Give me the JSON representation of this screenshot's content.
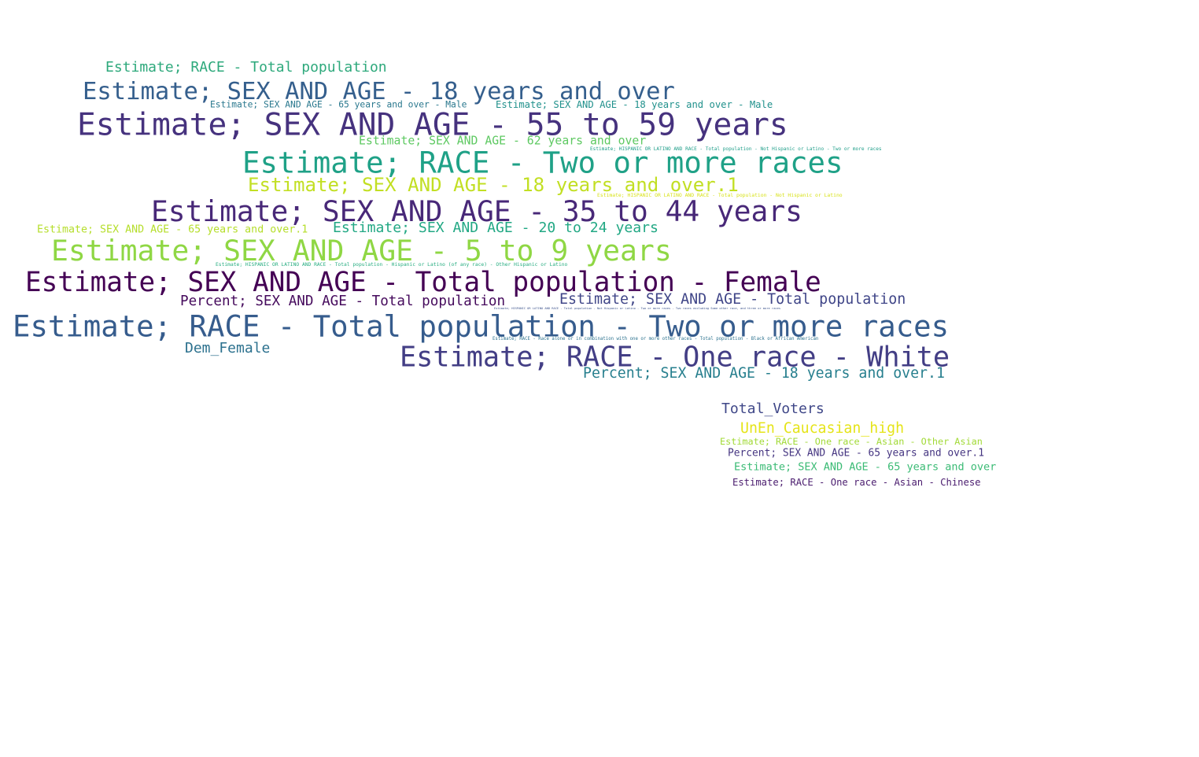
{
  "cloud": {
    "words": [
      {
        "text": "Estimate; RACE - Total population",
        "color": "#2ea97c"
      },
      {
        "text": "Estimate; SEX AND AGE - 18 years and over",
        "color": "#355f8d"
      },
      {
        "text": "Estimate; SEX AND AGE - 65 years and over - Male",
        "color": "#2a788e"
      },
      {
        "text": "Estimate; SEX AND AGE - 18 years and over - Male",
        "color": "#21918c"
      },
      {
        "text": "Estimate; SEX AND AGE - 55 to 59 years",
        "color": "#46327e"
      },
      {
        "text": "Estimate; SEX AND AGE - 62 years and over",
        "color": "#5ec962"
      },
      {
        "text": "Estimate; HISPANIC OR LATINO AND RACE - Total population - Not Hispanic or Latino - Two or more races",
        "color": "#1f9e89"
      },
      {
        "text": "Estimate; RACE - Two or more races",
        "color": "#1fa187"
      },
      {
        "text": "Estimate; SEX AND AGE - 18 years and over.1",
        "color": "#c2df23"
      },
      {
        "text": "Estimate; HISPANIC OR LATINO AND RACE - Total population - Not Hispanic or Latino",
        "color": "#d8e219"
      },
      {
        "text": "Estimate; SEX AND AGE - 35 to 44 years",
        "color": "#482878"
      },
      {
        "text": "Estimate; SEX AND AGE - 65 years and over.1",
        "color": "#b5de2b"
      },
      {
        "text": "Estimate; SEX AND AGE - 20 to 24 years",
        "color": "#22a884"
      },
      {
        "text": "Estimate; SEX AND AGE - 5 to 9 years",
        "color": "#8fd744"
      },
      {
        "text": "Estimate; HISPANIC OR LATINO AND RACE - Total population - Hispanic or Latino (of any race) - Other Hispanic or Latino",
        "color": "#27ad81"
      },
      {
        "text": "Estimate; SEX AND AGE - Total population - Female",
        "color": "#440154"
      },
      {
        "text": "Percent; SEX AND AGE - Total population",
        "color": "#450a5c"
      },
      {
        "text": "Estimate; SEX AND AGE - Total population",
        "color": "#404688"
      },
      {
        "text": "Estimate; HISPANIC OR LATINO AND RACE - Total population - Not Hispanic or Latino - Two or more races - Two races excluding Some other race, and three or more races",
        "color": "#3b528b"
      },
      {
        "text": "Estimate; RACE - Total population - Two or more races",
        "color": "#365c8d"
      },
      {
        "text": "Estimate; RACE - Race alone or in combination with one or more other races - Total population - Black or African American",
        "color": "#2c728e"
      },
      {
        "text": "Dem_Female",
        "color": "#2c718e"
      },
      {
        "text": "Estimate; RACE - One race - White",
        "color": "#433e85"
      },
      {
        "text": "Percent; SEX AND AGE - 18 years and over.1",
        "color": "#277f8e"
      },
      {
        "text": "Total_Voters",
        "color": "#3f4788"
      },
      {
        "text": "UnEn_Caucasian_high",
        "color": "#e5e419"
      },
      {
        "text": "Estimate; RACE - One race - Asian - Other Asian",
        "color": "#a2da37"
      },
      {
        "text": "Percent; SEX AND AGE - 65 years and over.1",
        "color": "#453581"
      },
      {
        "text": "Estimate; SEX AND AGE - 65 years and over",
        "color": "#3bbb75"
      },
      {
        "text": "Estimate; RACE - One race - Asian - Chinese",
        "color": "#4a1c6e"
      }
    ]
  }
}
